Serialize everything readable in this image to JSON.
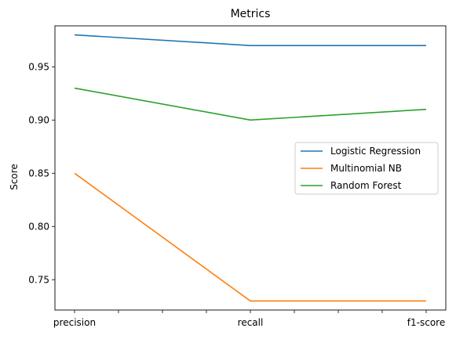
{
  "chart_data": {
    "type": "line",
    "title": "Metrics",
    "xlabel": "",
    "ylabel": "Score",
    "categories": [
      "precision",
      "recall",
      "f1-score"
    ],
    "minor_x_ticks": 4,
    "ylim": [
      0.7215,
      0.9885
    ],
    "yticks": [
      0.75,
      0.8,
      0.85,
      0.9,
      0.95
    ],
    "ytick_labels": [
      "0.75",
      "0.80",
      "0.85",
      "0.90",
      "0.95"
    ],
    "grid": false,
    "legend_position": "center-right",
    "series": [
      {
        "name": "Logistic Regression",
        "values": [
          0.98,
          0.97,
          0.97
        ],
        "color": "#1f77b4"
      },
      {
        "name": "Multinomial NB",
        "values": [
          0.85,
          0.73,
          0.73
        ],
        "color": "#ff7f0e"
      },
      {
        "name": "Random Forest",
        "values": [
          0.93,
          0.9,
          0.91
        ],
        "color": "#2ca02c"
      }
    ]
  }
}
